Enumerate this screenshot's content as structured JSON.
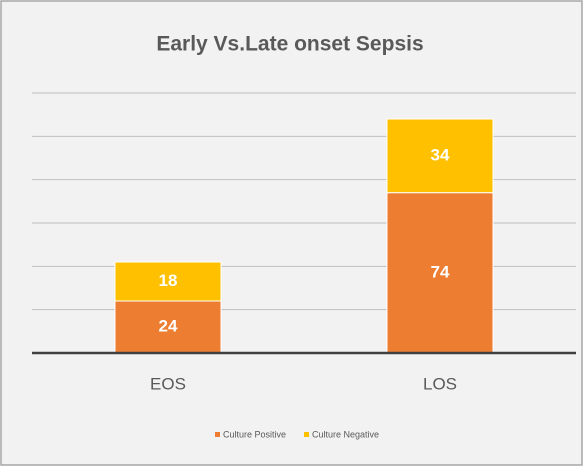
{
  "chart_data": {
    "type": "stacked_bar",
    "title": "Early Vs.Late onset Sepsis",
    "categories": [
      "EOS",
      "LOS"
    ],
    "series": [
      {
        "name": "Culture Positive",
        "color": "#ed7d31",
        "values": [
          24,
          74
        ]
      },
      {
        "name": "Culture Negative",
        "color": "#ffc000",
        "values": [
          18,
          34
        ]
      }
    ],
    "ylim": [
      0,
      120
    ],
    "yticks": [
      0,
      20,
      40,
      60,
      80,
      100,
      120
    ],
    "grid": true,
    "legend": "bottom"
  }
}
